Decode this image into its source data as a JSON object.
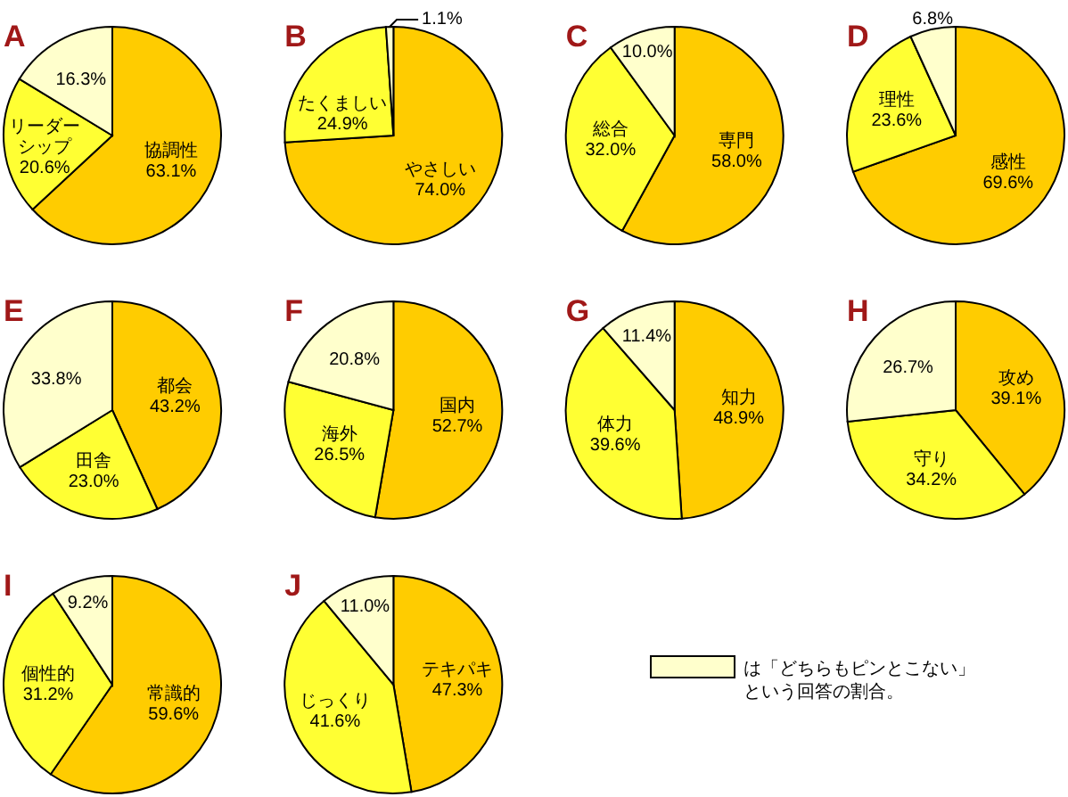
{
  "chart_data": [
    {
      "type": "pie",
      "title": "A",
      "categories": [
        "協調性",
        "リーダーシップ",
        null
      ],
      "values": [
        63.1,
        20.6,
        16.3
      ],
      "colors": [
        "#ffcc00",
        "#ffff33",
        "#ffffcc"
      ],
      "value_labels": [
        "63.1%",
        "20.6%",
        "16.3%"
      ]
    },
    {
      "type": "pie",
      "title": "B",
      "categories": [
        "やさしい",
        "たくましい",
        null
      ],
      "values": [
        74.0,
        24.9,
        1.1
      ],
      "colors": [
        "#ffcc00",
        "#ffff33",
        "#ffffcc"
      ],
      "value_labels": [
        "74.0%",
        "24.9%",
        "1.1%"
      ]
    },
    {
      "type": "pie",
      "title": "C",
      "categories": [
        "専門",
        "総合",
        null
      ],
      "values": [
        58.0,
        32.0,
        10.0
      ],
      "colors": [
        "#ffcc00",
        "#ffff33",
        "#ffffcc"
      ],
      "value_labels": [
        "58.0%",
        "32.0%",
        "10.0%"
      ]
    },
    {
      "type": "pie",
      "title": "D",
      "categories": [
        "感性",
        "理性",
        null
      ],
      "values": [
        69.6,
        23.6,
        6.8
      ],
      "colors": [
        "#ffcc00",
        "#ffff33",
        "#ffffcc"
      ],
      "value_labels": [
        "69.6%",
        "23.6%",
        "6.8%"
      ]
    },
    {
      "type": "pie",
      "title": "E",
      "categories": [
        "都会",
        "田舎",
        null
      ],
      "values": [
        43.2,
        23.0,
        33.8
      ],
      "colors": [
        "#ffcc00",
        "#ffff33",
        "#ffffcc"
      ],
      "value_labels": [
        "43.2%",
        "23.0%",
        "33.8%"
      ]
    },
    {
      "type": "pie",
      "title": "F",
      "categories": [
        "国内",
        "海外",
        null
      ],
      "values": [
        52.7,
        26.5,
        20.8
      ],
      "colors": [
        "#ffcc00",
        "#ffff33",
        "#ffffcc"
      ],
      "value_labels": [
        "52.7%",
        "26.5%",
        "20.8%"
      ]
    },
    {
      "type": "pie",
      "title": "G",
      "categories": [
        "知力",
        "体力",
        null
      ],
      "values": [
        48.9,
        39.6,
        11.4
      ],
      "colors": [
        "#ffcc00",
        "#ffff33",
        "#ffffcc"
      ],
      "value_labels": [
        "48.9%",
        "39.6%",
        "11.4%"
      ]
    },
    {
      "type": "pie",
      "title": "H",
      "categories": [
        "攻め",
        "守り",
        null
      ],
      "values": [
        39.1,
        34.2,
        26.7
      ],
      "colors": [
        "#ffcc00",
        "#ffff33",
        "#ffffcc"
      ],
      "value_labels": [
        "39.1%",
        "34.2%",
        "26.7%"
      ]
    },
    {
      "type": "pie",
      "title": "I",
      "categories": [
        "常識的",
        "個性的",
        null
      ],
      "values": [
        59.6,
        31.2,
        9.2
      ],
      "colors": [
        "#ffcc00",
        "#ffff33",
        "#ffffcc"
      ],
      "value_labels": [
        "59.6%",
        "31.2%",
        "9.2%"
      ]
    },
    {
      "type": "pie",
      "title": "J",
      "categories": [
        "テキパキ",
        "じっくり",
        null
      ],
      "values": [
        47.3,
        41.6,
        11.0
      ],
      "colors": [
        "#ffcc00",
        "#ffff33",
        "#ffffcc"
      ],
      "value_labels": [
        "47.3%",
        "41.6%",
        "11.0%"
      ]
    },
    {
      "type": "other",
      "annotations": [
        "は「どちらもピンとこない」という回答の割合。"
      ],
      "colors": [
        "#ffffcc"
      ]
    }
  ]
}
